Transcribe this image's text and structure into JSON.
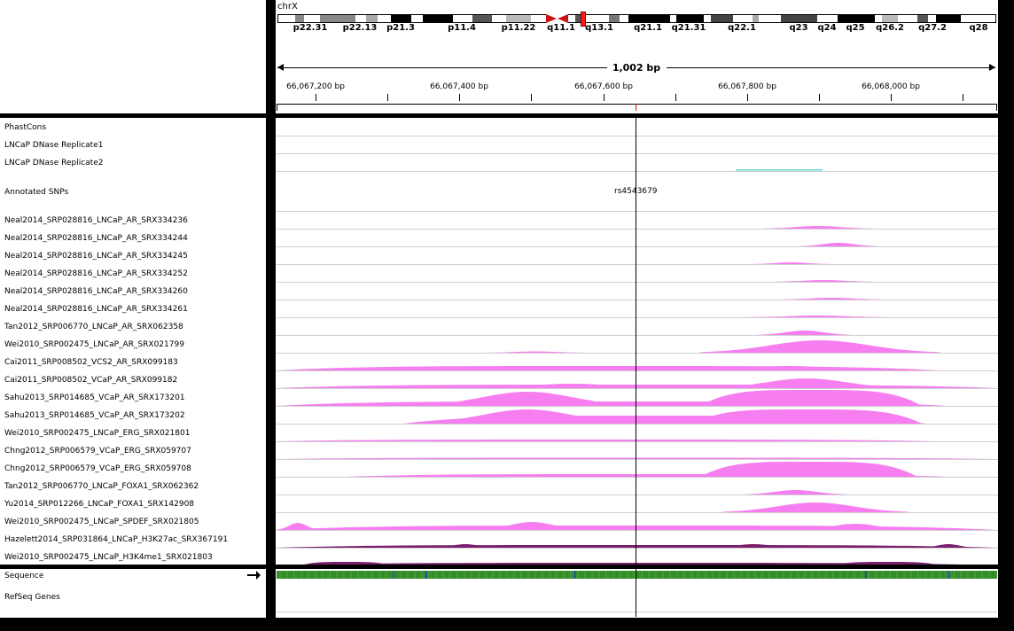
{
  "chromosome": {
    "name": "chrX",
    "bands": [
      "p22.31",
      "p22.13",
      "p21.3",
      "p11.4",
      "p11.22",
      "q11.1",
      "q13.1",
      "q21.1",
      "q21.31",
      "q22.1",
      "q23",
      "q24",
      "q25",
      "q26.2",
      "q27.2",
      "q28"
    ]
  },
  "ruler": {
    "span_label": "1,002 bp",
    "ticks": [
      "66,067,200 bp",
      "66,067,400 bp",
      "66,067,600 bp",
      "66,067,800 bp",
      "66,068,000 bp"
    ]
  },
  "snp": {
    "label": "rs4543679"
  },
  "tracks": [
    "PhastCons",
    "LNCaP DNase Replicate1",
    "LNCaP DNase Replicate2",
    "Annotated SNPs",
    "Neal2014_SRP028816_LNCaP_AR_SRX334236",
    "Neal2014_SRP028816_LNCaP_AR_SRX334244",
    "Neal2014_SRP028816_LNCaP_AR_SRX334245",
    "Neal2014_SRP028816_LNCaP_AR_SRX334252",
    "Neal2014_SRP028816_LNCaP_AR_SRX334260",
    "Neal2014_SRP028816_LNCaP_AR_SRX334261",
    "Tan2012_SRP006770_LNCaP_AR_SRX062358",
    "Wei2010_SRP002475_LNCaP_AR_SRX021799",
    "Cai2011_SRP008502_VCS2_AR_SRX099183",
    "Cai2011_SRP008502_VCaP_AR_SRX099182",
    "Sahu2013_SRP014685_VCaP_AR_SRX173201",
    "Sahu2013_SRP014685_VCaP_AR_SRX173202",
    "Wei2010_SRP002475_LNCaP_ERG_SRX021801",
    "Chng2012_SRP006579_VCaP_ERG_SRX059707",
    "Chng2012_SRP006579_VCaP_ERG_SRX059708",
    "Tan2012_SRP006770_LNCaP_FOXA1_SRX062362",
    "Yu2014_SRP012266_LNCaP_FOXA1_SRX142908",
    "Wei2010_SRP002475_LNCaP_SPDEF_SRX021805",
    "Hazelett2014_SRP031864_LNCaP_H3K27ac_SRX367191",
    "Wei2010_SRP002475_LNCaP_H3K4me1_SRX021803"
  ],
  "bottom_tracks": [
    "Sequence",
    "RefSeq Genes"
  ],
  "colors": {
    "chip_signal": "#f67ef0",
    "histone_signal": "#7a1f6e",
    "dnase_signal": "#62d9d9",
    "centromere": "#cc1111",
    "cursor_line": "#000000"
  },
  "icons": {
    "sequence_strand": "right-arrow-icon"
  }
}
